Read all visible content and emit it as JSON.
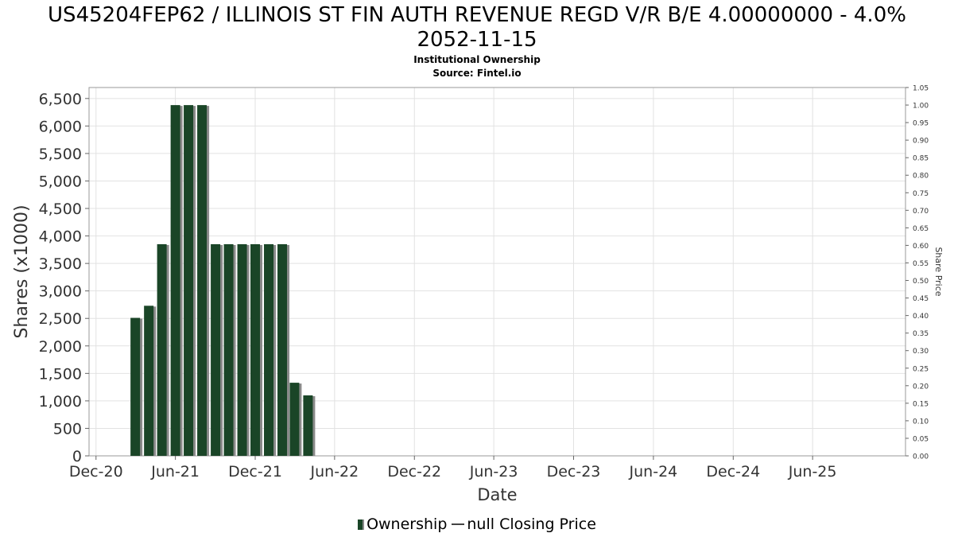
{
  "chart_data": {
    "type": "bar",
    "title_line1": "US45204FEP62 / ILLINOIS ST FIN AUTH REVENUE REGD V/R B/E 4.00000000 - 4.0%",
    "title_line2": "2052-11-15",
    "subtitle_line1": "Institutional Ownership",
    "subtitle_line2": "Source: Fintel.io",
    "xlabel": "Date",
    "ylabel": "Shares (x1000)",
    "y2label": "Share Price",
    "ylim": [
      0,
      6700
    ],
    "y2lim": [
      0,
      1.05
    ],
    "xlim": [
      "2020-11-15",
      "2025-12-31"
    ],
    "grid": true,
    "x_ticks": [
      {
        "date": "2020-12-01",
        "label": "Dec-20"
      },
      {
        "date": "2021-06-01",
        "label": "Jun-21"
      },
      {
        "date": "2021-12-01",
        "label": "Dec-21"
      },
      {
        "date": "2022-06-01",
        "label": "Jun-22"
      },
      {
        "date": "2022-12-01",
        "label": "Dec-22"
      },
      {
        "date": "2023-06-01",
        "label": "Jun-23"
      },
      {
        "date": "2023-12-01",
        "label": "Dec-23"
      },
      {
        "date": "2024-06-01",
        "label": "Jun-24"
      },
      {
        "date": "2024-12-01",
        "label": "Dec-24"
      },
      {
        "date": "2025-06-01",
        "label": "Jun-25"
      }
    ],
    "y_ticks": [
      {
        "value": 0,
        "label": "0"
      },
      {
        "value": 500,
        "label": "500"
      },
      {
        "value": 1000,
        "label": "1,000"
      },
      {
        "value": 1500,
        "label": "1,500"
      },
      {
        "value": 2000,
        "label": "2,000"
      },
      {
        "value": 2500,
        "label": "2,500"
      },
      {
        "value": 3000,
        "label": "3,000"
      },
      {
        "value": 3500,
        "label": "3,500"
      },
      {
        "value": 4000,
        "label": "4,000"
      },
      {
        "value": 4500,
        "label": "4,500"
      },
      {
        "value": 5000,
        "label": "5,000"
      },
      {
        "value": 5500,
        "label": "5,500"
      },
      {
        "value": 6000,
        "label": "6,000"
      },
      {
        "value": 6500,
        "label": "6,500"
      }
    ],
    "y2_ticks": [
      {
        "value": 0.0,
        "label": "0.00"
      },
      {
        "value": 0.05,
        "label": "0.05"
      },
      {
        "value": 0.1,
        "label": "0.10"
      },
      {
        "value": 0.15,
        "label": "0.15"
      },
      {
        "value": 0.2,
        "label": "0.20"
      },
      {
        "value": 0.25,
        "label": "0.25"
      },
      {
        "value": 0.3,
        "label": "0.30"
      },
      {
        "value": 0.35,
        "label": "0.35"
      },
      {
        "value": 0.4,
        "label": "0.40"
      },
      {
        "value": 0.45,
        "label": "0.45"
      },
      {
        "value": 0.5,
        "label": "0.50"
      },
      {
        "value": 0.55,
        "label": "0.55"
      },
      {
        "value": 0.6,
        "label": "0.60"
      },
      {
        "value": 0.65,
        "label": "0.65"
      },
      {
        "value": 0.7,
        "label": "0.70"
      },
      {
        "value": 0.75,
        "label": "0.75"
      },
      {
        "value": 0.8,
        "label": "0.80"
      },
      {
        "value": 0.85,
        "label": "0.85"
      },
      {
        "value": 0.9,
        "label": "0.90"
      },
      {
        "value": 0.95,
        "label": "0.95"
      },
      {
        "value": 1.0,
        "label": "1.00"
      },
      {
        "value": 1.05,
        "label": "1.05"
      }
    ],
    "series": [
      {
        "name": "Ownership",
        "type": "bar",
        "color": "#1a4527",
        "shadow_color": "#8a8a8a",
        "points": [
          {
            "date": "2021-03-01",
            "value": 2510
          },
          {
            "date": "2021-04-01",
            "value": 2730
          },
          {
            "date": "2021-05-01",
            "value": 3850
          },
          {
            "date": "2021-06-01",
            "value": 6380
          },
          {
            "date": "2021-07-01",
            "value": 6380
          },
          {
            "date": "2021-08-01",
            "value": 6380
          },
          {
            "date": "2021-09-01",
            "value": 3850
          },
          {
            "date": "2021-10-01",
            "value": 3850
          },
          {
            "date": "2021-11-01",
            "value": 3850
          },
          {
            "date": "2021-12-01",
            "value": 3850
          },
          {
            "date": "2022-01-01",
            "value": 3850
          },
          {
            "date": "2022-02-01",
            "value": 3850
          },
          {
            "date": "2022-03-01",
            "value": 1330
          },
          {
            "date": "2022-04-01",
            "value": 1100
          }
        ]
      },
      {
        "name": "null Closing Price",
        "type": "line",
        "color": "#444444",
        "points": []
      }
    ],
    "legend": {
      "position": "bottom-center",
      "items": [
        {
          "label": "Ownership",
          "marker": "bar"
        },
        {
          "label": "null Closing Price",
          "marker": "line"
        }
      ]
    }
  }
}
